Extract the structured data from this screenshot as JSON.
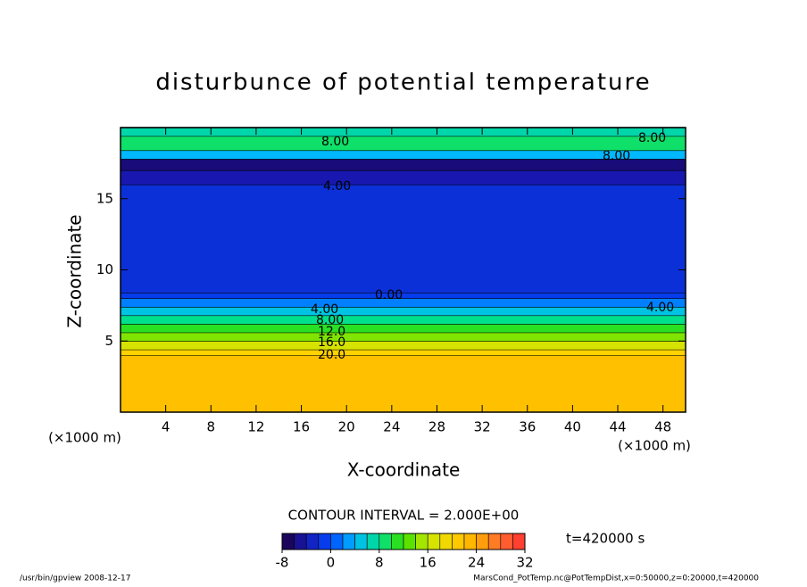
{
  "chart_data": {
    "type": "contour",
    "title": "disturbunce of potential temperature",
    "x_label": "X-coordinate",
    "y_label": "Z-coordinate",
    "x_unit_left": "(×1000 m)",
    "x_unit_right": "(×1000 m)",
    "xlim": [
      0,
      50
    ],
    "xticks": [
      4,
      8,
      12,
      16,
      20,
      24,
      28,
      32,
      36,
      40,
      44,
      48
    ],
    "ylim": [
      0,
      20
    ],
    "yticks": [
      5,
      10,
      15
    ],
    "layers": [
      {
        "z_bottom": 0,
        "z_top": 4.0,
        "value": 22
      },
      {
        "z_bottom": 4.0,
        "z_top": 4.4,
        "value": 20
      },
      {
        "z_bottom": 4.4,
        "z_top": 5.0,
        "value": 17
      },
      {
        "z_bottom": 5.0,
        "z_top": 5.6,
        "value": 14
      },
      {
        "z_bottom": 5.6,
        "z_top": 6.2,
        "value": 11
      },
      {
        "z_bottom": 6.2,
        "z_top": 6.8,
        "value": 8
      },
      {
        "z_bottom": 6.8,
        "z_top": 7.4,
        "value": 5
      },
      {
        "z_bottom": 7.4,
        "z_top": 8.0,
        "value": 2
      },
      {
        "z_bottom": 8.0,
        "z_top": 8.4,
        "value": -1
      },
      {
        "z_bottom": 8.4,
        "z_top": 16,
        "value": -2
      },
      {
        "z_bottom": 16,
        "z_top": 17,
        "value": -4
      },
      {
        "z_bottom": 17,
        "z_top": 17.8,
        "value": -6
      },
      {
        "z_bottom": 17.8,
        "z_top": 18.4,
        "value": 4
      },
      {
        "z_bottom": 18.4,
        "z_top": 19.4,
        "value": 9
      },
      {
        "z_bottom": 19.4,
        "z_top": 20,
        "value": 7
      }
    ],
    "contour_labels": [
      "8.00",
      "8.00",
      "8.00",
      "4.00",
      "0.00",
      "4.00",
      "4.00",
      "8.00",
      "12.0",
      "16.0",
      "20.0"
    ],
    "contour_interval_text": "CONTOUR INTERVAL = 2.000E+00",
    "time_text": "t=420000 s",
    "clim": [
      -8,
      32
    ],
    "cticks": [
      -8,
      0,
      8,
      16,
      24,
      32
    ],
    "cstep": 2,
    "colormap": [
      "#1a0040",
      "#1818b0",
      "#0048ff",
      "#00b8ff",
      "#00e08c",
      "#38e000",
      "#c8e800",
      "#ffd200",
      "#ffae00",
      "#ff6a30",
      "#ff3030"
    ],
    "footer_left": "/usr/bin/gpview   2008-12-17",
    "footer_right": "MarsCond_PotTemp.nc@PotTempDist,x=0:50000,z=0:20000,t=420000"
  }
}
